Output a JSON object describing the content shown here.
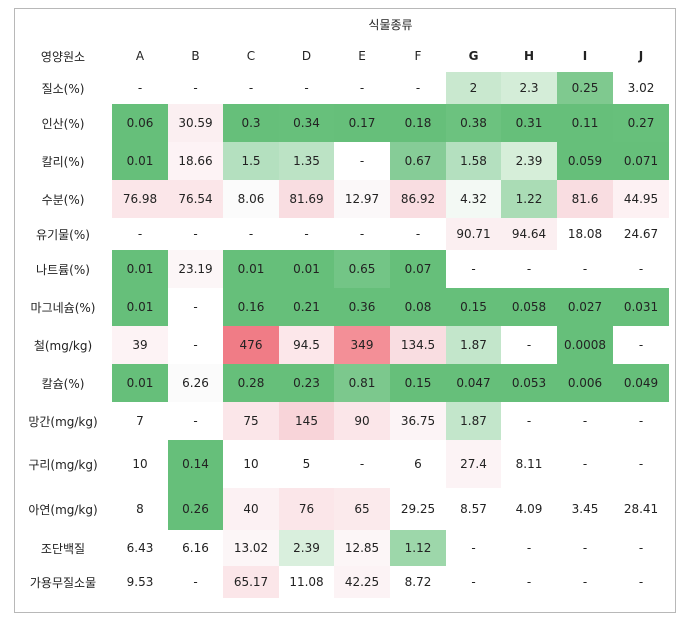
{
  "table": {
    "group_header": "식물종류",
    "corner_header": "영양원소",
    "columns": [
      "A",
      "B",
      "C",
      "D",
      "E",
      "F",
      "G",
      "H",
      "I",
      "J"
    ],
    "bold_columns": [
      "G",
      "H",
      "I",
      "J"
    ],
    "rows": [
      {
        "label": "질소(%)",
        "values": [
          "-",
          "-",
          "-",
          "-",
          "-",
          "-",
          "2",
          "2.3",
          "0.25",
          "3.02"
        ]
      },
      {
        "label": "인산(%)",
        "values": [
          "0.06",
          "30.59",
          "0.3",
          "0.34",
          "0.17",
          "0.18",
          "0.38",
          "0.31",
          "0.11",
          "0.27"
        ]
      },
      {
        "label": "칼리(%)",
        "values": [
          "0.01",
          "18.66",
          "1.5",
          "1.35",
          "-",
          "0.67",
          "1.58",
          "2.39",
          "0.059",
          "0.071"
        ]
      },
      {
        "label": "수분(%)",
        "values": [
          "76.98",
          "76.54",
          "8.06",
          "81.69",
          "12.97",
          "86.92",
          "4.32",
          "1.22",
          "81.6",
          "44.95"
        ]
      },
      {
        "label": "유기물(%)",
        "values": [
          "-",
          "-",
          "-",
          "-",
          "-",
          "-",
          "90.71",
          "94.64",
          "18.08",
          "24.67"
        ]
      },
      {
        "label": "나트륨(%)",
        "values": [
          "0.01",
          "23.19",
          "0.01",
          "0.01",
          "0.65",
          "0.07",
          "-",
          "-",
          "-",
          "-"
        ]
      },
      {
        "label": "마그네슘(%)",
        "values": [
          "0.01",
          "-",
          "0.16",
          "0.21",
          "0.36",
          "0.08",
          "0.15",
          "0.058",
          "0.027",
          "0.031"
        ]
      },
      {
        "label": "철(mg/kg)",
        "values": [
          "39",
          "-",
          "476",
          "94.5",
          "349",
          "134.5",
          "1.87",
          "-",
          "0.0008",
          "-"
        ]
      },
      {
        "label": "칼슘(%)",
        "values": [
          "0.01",
          "6.26",
          "0.28",
          "0.23",
          "0.81",
          "0.15",
          "0.047",
          "0.053",
          "0.006",
          "0.049"
        ]
      },
      {
        "label": "망간(mg/kg)",
        "values": [
          "7",
          "-",
          "75",
          "145",
          "90",
          "36.75",
          "1.87",
          "-",
          "-",
          "-"
        ]
      },
      {
        "label": "구리(mg/kg)",
        "values": [
          "10",
          "0.14",
          "10",
          "5",
          "-",
          "6",
          "27.4",
          "8.11",
          "-",
          "-"
        ]
      },
      {
        "label": "아연(mg/kg)",
        "values": [
          "8",
          "0.26",
          "40",
          "76",
          "65",
          "29.25",
          "8.57",
          "4.09",
          "3.45",
          "28.41"
        ]
      },
      {
        "label": "조단백질",
        "values": [
          "6.43",
          "6.16",
          "13.02",
          "2.39",
          "12.85",
          "1.12",
          "-",
          "-",
          "-",
          "-"
        ]
      },
      {
        "label": "가용무질소물",
        "values": [
          "9.53",
          "-",
          "65.17",
          "11.08",
          "42.25",
          "8.72",
          "-",
          "-",
          "-",
          "-"
        ]
      }
    ],
    "cell_colors": [
      [
        "#ffffff",
        "#ffffff",
        "#ffffff",
        "#ffffff",
        "#ffffff",
        "#ffffff",
        "#c9e8cf",
        "#d4edd8",
        "#7fc98f",
        "#ffffff"
      ],
      [
        "#66bf7a",
        "#fbeff1",
        "#66bf7a",
        "#67c07b",
        "#66bf7a",
        "#66bf7a",
        "#6cc27f",
        "#66bf7a",
        "#66bf7a",
        "#67c07b"
      ],
      [
        "#66bf7a",
        "#fdf3f5",
        "#b4e0bf",
        "#bce3c5",
        "#ffffff",
        "#86cc97",
        "#b4e0bf",
        "#d6eed9",
        "#66bf7a",
        "#66bf7a"
      ],
      [
        "#fbe6e9",
        "#fbe6e9",
        "#fbfbfb",
        "#f9dde1",
        "#fbf8f9",
        "#f9dde1",
        "#f3f9f4",
        "#aadcb5",
        "#f9dde1",
        "#fdf1f3"
      ],
      [
        "#ffffff",
        "#ffffff",
        "#ffffff",
        "#ffffff",
        "#ffffff",
        "#ffffff",
        "#fbeff1",
        "#fbeff1",
        "#ffffff",
        "#ffffff"
      ],
      [
        "#66bf7a",
        "#fcf6f7",
        "#66bf7a",
        "#66bf7a",
        "#73c586",
        "#66bf7a",
        "#ffffff",
        "#ffffff",
        "#ffffff",
        "#ffffff"
      ],
      [
        "#66bf7a",
        "#ffffff",
        "#66bf7a",
        "#66bf7a",
        "#66bf7a",
        "#66bf7a",
        "#66bf7a",
        "#66bf7a",
        "#66bf7a",
        "#66bf7a"
      ],
      [
        "#fdf3f5",
        "#ffffff",
        "#f07c86",
        "#fce7ea",
        "#f38f97",
        "#f9dde1",
        "#c3e6cb",
        "#ffffff",
        "#66bf7a",
        "#ffffff"
      ],
      [
        "#66bf7a",
        "#fbfbfb",
        "#66bf7a",
        "#66bf7a",
        "#7cc88d",
        "#66bf7a",
        "#66bf7a",
        "#66bf7a",
        "#66bf7a",
        "#66bf7a"
      ],
      [
        "#ffffff",
        "#ffffff",
        "#fbe6e9",
        "#f8d4d9",
        "#fbe6e9",
        "#fcf4f6",
        "#c3e6cb",
        "#ffffff",
        "#ffffff",
        "#ffffff"
      ],
      [
        "#ffffff",
        "#66bf7a",
        "#ffffff",
        "#ffffff",
        "#ffffff",
        "#ffffff",
        "#fcf3f5",
        "#ffffff",
        "#ffffff",
        "#ffffff"
      ],
      [
        "#ffffff",
        "#66bf7a",
        "#fcf1f3",
        "#fbe6e9",
        "#fbeaec",
        "#ffffff",
        "#ffffff",
        "#ffffff",
        "#ffffff",
        "#ffffff"
      ],
      [
        "#ffffff",
        "#ffffff",
        "#fcf6f7",
        "#d9efdd",
        "#fcf6f7",
        "#9dd7aa",
        "#ffffff",
        "#ffffff",
        "#ffffff",
        "#ffffff"
      ],
      [
        "#ffffff",
        "#ffffff",
        "#fbe6e9",
        "#ffffff",
        "#fcf3f5",
        "#ffffff",
        "#ffffff",
        "#ffffff",
        "#ffffff",
        "#ffffff"
      ]
    ]
  }
}
